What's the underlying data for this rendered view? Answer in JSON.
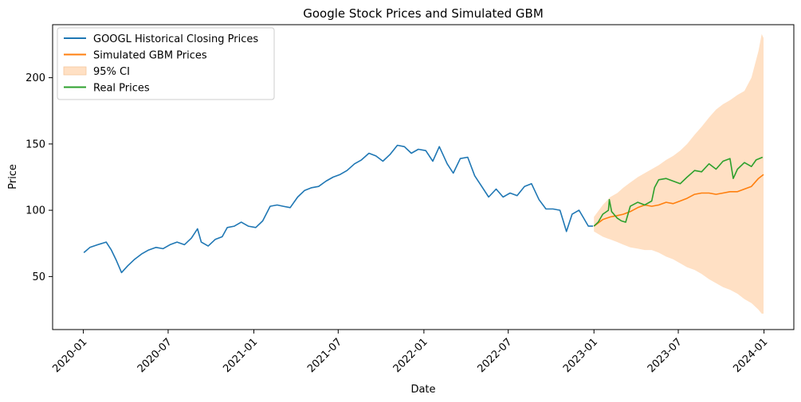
{
  "chart_data": {
    "type": "line",
    "title": "Google Stock Prices and Simulated GBM",
    "xlabel": "Date",
    "ylabel": "Price",
    "x_axis": {
      "type": "date",
      "range": [
        "2019-10-27",
        "2024-03-05"
      ],
      "ticks": [
        "2020-01",
        "2020-07",
        "2021-01",
        "2021-07",
        "2022-01",
        "2022-07",
        "2023-01",
        "2023-07",
        "2024-01"
      ]
    },
    "y_axis": {
      "range": [
        10,
        240
      ],
      "ticks": [
        50,
        100,
        150,
        200
      ]
    },
    "grid": false,
    "legend_position": "top-left",
    "series": [
      {
        "name": "GOOGL Historical Closing Prices",
        "color": "#1f77b4",
        "type": "line",
        "points": [
          [
            "2020-01-02",
            68
          ],
          [
            "2020-01-15",
            72
          ],
          [
            "2020-02-01",
            74
          ],
          [
            "2020-02-19",
            76
          ],
          [
            "2020-03-01",
            70
          ],
          [
            "2020-03-12",
            62
          ],
          [
            "2020-03-23",
            53
          ],
          [
            "2020-04-05",
            58
          ],
          [
            "2020-04-20",
            63
          ],
          [
            "2020-05-05",
            67
          ],
          [
            "2020-05-20",
            70
          ],
          [
            "2020-06-05",
            72
          ],
          [
            "2020-06-20",
            71
          ],
          [
            "2020-07-05",
            74
          ],
          [
            "2020-07-20",
            76
          ],
          [
            "2020-08-05",
            74
          ],
          [
            "2020-08-20",
            79
          ],
          [
            "2020-09-02",
            86
          ],
          [
            "2020-09-10",
            76
          ],
          [
            "2020-09-25",
            73
          ],
          [
            "2020-10-10",
            78
          ],
          [
            "2020-10-25",
            80
          ],
          [
            "2020-11-05",
            87
          ],
          [
            "2020-11-20",
            88
          ],
          [
            "2020-12-05",
            91
          ],
          [
            "2020-12-20",
            88
          ],
          [
            "2021-01-05",
            87
          ],
          [
            "2021-01-20",
            92
          ],
          [
            "2021-02-05",
            103
          ],
          [
            "2021-02-20",
            104
          ],
          [
            "2021-03-05",
            103
          ],
          [
            "2021-03-20",
            102
          ],
          [
            "2021-04-05",
            110
          ],
          [
            "2021-04-20",
            115
          ],
          [
            "2021-05-05",
            117
          ],
          [
            "2021-05-20",
            118
          ],
          [
            "2021-06-05",
            122
          ],
          [
            "2021-06-20",
            125
          ],
          [
            "2021-07-05",
            127
          ],
          [
            "2021-07-20",
            130
          ],
          [
            "2021-08-05",
            135
          ],
          [
            "2021-08-20",
            138
          ],
          [
            "2021-09-05",
            143
          ],
          [
            "2021-09-20",
            141
          ],
          [
            "2021-10-05",
            137
          ],
          [
            "2021-10-20",
            142
          ],
          [
            "2021-11-05",
            149
          ],
          [
            "2021-11-20",
            148
          ],
          [
            "2021-12-05",
            143
          ],
          [
            "2021-12-20",
            146
          ],
          [
            "2022-01-05",
            145
          ],
          [
            "2022-01-20",
            137
          ],
          [
            "2022-02-03",
            148
          ],
          [
            "2022-02-20",
            135
          ],
          [
            "2022-03-05",
            128
          ],
          [
            "2022-03-20",
            139
          ],
          [
            "2022-04-05",
            140
          ],
          [
            "2022-04-20",
            126
          ],
          [
            "2022-05-05",
            118
          ],
          [
            "2022-05-20",
            110
          ],
          [
            "2022-06-05",
            116
          ],
          [
            "2022-06-20",
            110
          ],
          [
            "2022-07-05",
            113
          ],
          [
            "2022-07-20",
            111
          ],
          [
            "2022-08-05",
            118
          ],
          [
            "2022-08-20",
            120
          ],
          [
            "2022-09-05",
            108
          ],
          [
            "2022-09-20",
            101
          ],
          [
            "2022-10-05",
            101
          ],
          [
            "2022-10-20",
            100
          ],
          [
            "2022-10-27",
            92
          ],
          [
            "2022-11-03",
            84
          ],
          [
            "2022-11-15",
            97
          ],
          [
            "2022-11-30",
            100
          ],
          [
            "2022-12-10",
            94
          ],
          [
            "2022-12-20",
            88
          ],
          [
            "2022-12-30",
            88
          ]
        ]
      },
      {
        "name": "Simulated GBM Prices",
        "color": "#ff7f0e",
        "type": "line",
        "points": [
          [
            "2023-01-01",
            88
          ],
          [
            "2023-01-20",
            93
          ],
          [
            "2023-02-05",
            95
          ],
          [
            "2023-02-20",
            96
          ],
          [
            "2023-03-05",
            97
          ],
          [
            "2023-03-20",
            99
          ],
          [
            "2023-04-05",
            102
          ],
          [
            "2023-04-20",
            104
          ],
          [
            "2023-05-05",
            103
          ],
          [
            "2023-05-20",
            104
          ],
          [
            "2023-06-05",
            106
          ],
          [
            "2023-06-20",
            105
          ],
          [
            "2023-07-05",
            107
          ],
          [
            "2023-07-20",
            109
          ],
          [
            "2023-08-05",
            112
          ],
          [
            "2023-08-20",
            113
          ],
          [
            "2023-09-05",
            113
          ],
          [
            "2023-09-20",
            112
          ],
          [
            "2023-10-05",
            113
          ],
          [
            "2023-10-20",
            114
          ],
          [
            "2023-11-05",
            114
          ],
          [
            "2023-11-20",
            116
          ],
          [
            "2023-12-05",
            118
          ],
          [
            "2023-12-20",
            124
          ],
          [
            "2023-12-31",
            127
          ]
        ]
      },
      {
        "name": "95% CI",
        "color": "#ffe0c4",
        "type": "band",
        "points": [
          [
            "2023-01-01",
            84,
            95
          ],
          [
            "2023-01-20",
            80,
            104
          ],
          [
            "2023-02-05",
            78,
            110
          ],
          [
            "2023-02-20",
            76,
            113
          ],
          [
            "2023-03-05",
            74,
            117
          ],
          [
            "2023-03-20",
            72,
            121
          ],
          [
            "2023-04-05",
            71,
            125
          ],
          [
            "2023-04-20",
            70,
            128
          ],
          [
            "2023-05-05",
            70,
            131
          ],
          [
            "2023-05-20",
            68,
            134
          ],
          [
            "2023-06-05",
            65,
            138
          ],
          [
            "2023-06-20",
            63,
            141
          ],
          [
            "2023-07-05",
            60,
            145
          ],
          [
            "2023-07-20",
            57,
            150
          ],
          [
            "2023-08-05",
            55,
            157
          ],
          [
            "2023-08-20",
            52,
            163
          ],
          [
            "2023-09-05",
            48,
            170
          ],
          [
            "2023-09-20",
            45,
            176
          ],
          [
            "2023-10-05",
            42,
            180
          ],
          [
            "2023-10-20",
            40,
            183
          ],
          [
            "2023-11-05",
            37,
            187
          ],
          [
            "2023-11-20",
            33,
            190
          ],
          [
            "2023-12-05",
            30,
            200
          ],
          [
            "2023-12-20",
            25,
            220
          ],
          [
            "2023-12-27",
            22,
            233
          ],
          [
            "2023-12-31",
            22,
            230
          ]
        ]
      },
      {
        "name": "Real Prices",
        "color": "#2ca02c",
        "type": "line",
        "points": [
          [
            "2023-01-01",
            88
          ],
          [
            "2023-01-10",
            91
          ],
          [
            "2023-01-20",
            97
          ],
          [
            "2023-02-01",
            100
          ],
          [
            "2023-02-03",
            108
          ],
          [
            "2023-02-08",
            99
          ],
          [
            "2023-02-20",
            94
          ],
          [
            "2023-03-01",
            92
          ],
          [
            "2023-03-10",
            91
          ],
          [
            "2023-03-20",
            103
          ],
          [
            "2023-04-05",
            106
          ],
          [
            "2023-04-20",
            104
          ],
          [
            "2023-05-05",
            107
          ],
          [
            "2023-05-11",
            117
          ],
          [
            "2023-05-20",
            123
          ],
          [
            "2023-06-05",
            124
          ],
          [
            "2023-06-20",
            122
          ],
          [
            "2023-07-05",
            120
          ],
          [
            "2023-07-20",
            125
          ],
          [
            "2023-08-05",
            130
          ],
          [
            "2023-08-20",
            129
          ],
          [
            "2023-09-05",
            135
          ],
          [
            "2023-09-20",
            131
          ],
          [
            "2023-10-05",
            137
          ],
          [
            "2023-10-20",
            139
          ],
          [
            "2023-10-27",
            124
          ],
          [
            "2023-11-05",
            131
          ],
          [
            "2023-11-20",
            136
          ],
          [
            "2023-12-05",
            133
          ],
          [
            "2023-12-15",
            138
          ],
          [
            "2023-12-29",
            140
          ]
        ]
      }
    ]
  }
}
